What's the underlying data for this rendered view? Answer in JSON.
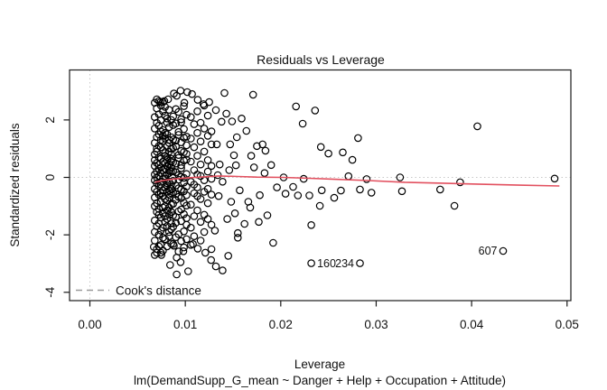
{
  "chart_data": {
    "type": "scatter",
    "title": "Residuals vs Leverage",
    "xlabel": "Leverage",
    "sub_xlabel": "lm(DemandSupp_G_mean ~ Danger + Help + Occupation + Attitude)",
    "ylabel": "Standardized residuals",
    "xlim": [
      -0.00213,
      0.0504
    ],
    "ylim": [
      -4.29,
      3.74
    ],
    "x_ticks": [
      0,
      0.01,
      0.02,
      0.03,
      0.04,
      0.05
    ],
    "x_tick_labels": [
      "0.00",
      "0.01",
      "0.02",
      "0.03",
      "0.04",
      "0.05"
    ],
    "y_ticks": [
      -4,
      -2,
      0,
      2
    ],
    "y_tick_labels": [
      "-4",
      "-2",
      "0",
      "2"
    ],
    "grid": "off",
    "reference_lines": {
      "h": 0,
      "v": 0,
      "style": "dotted",
      "color": "#c8c8c8"
    },
    "legend": {
      "label": "Cook's distance",
      "position": "bottom-left-inside",
      "color": "#9a9a9a",
      "line_style": "dashed"
    },
    "marker": {
      "shape": "open-circle",
      "radius": 3.7,
      "color": "#000000"
    },
    "smooth_line": {
      "color": "#e2505f",
      "points": [
        [
          0.0068,
          -0.17
        ],
        [
          0.0078,
          -0.1
        ],
        [
          0.009,
          -0.05
        ],
        [
          0.0105,
          -0.01
        ],
        [
          0.012,
          0.02
        ],
        [
          0.0135,
          0.05
        ],
        [
          0.0155,
          0.03
        ],
        [
          0.0175,
          0.01
        ],
        [
          0.0202,
          0.0
        ],
        [
          0.023,
          -0.03
        ],
        [
          0.026,
          -0.07
        ],
        [
          0.0292,
          -0.11
        ],
        [
          0.033,
          -0.17
        ],
        [
          0.037,
          -0.2
        ],
        [
          0.041,
          -0.24
        ],
        [
          0.045,
          -0.27
        ],
        [
          0.0492,
          -0.3
        ]
      ]
    },
    "labeled_points": [
      {
        "label": "160",
        "x": 0.0232,
        "y": -2.99,
        "side": "right"
      },
      {
        "label": "234",
        "x": 0.0283,
        "y": -2.99,
        "side": "left"
      },
      {
        "label": "607",
        "x": 0.0433,
        "y": -2.56,
        "side": "left"
      }
    ],
    "points": {
      "columns": [
        {
          "x": 0.0068,
          "ys": [
            -0.1,
            0.4,
            -0.7,
            1.2,
            -1.5,
            2.1,
            0.1,
            -2.2,
            0.8,
            -0.4,
            1.7,
            -1.0,
            2.6,
            -1.9,
            0.6,
            -2.7
          ]
        },
        {
          "x": 0.00701,
          "ys": [
            0.2,
            -0.5,
            1.0,
            -1.2,
            1.9,
            -0.2,
            2.4,
            -1.7,
            0.5,
            -2.5,
            1.4,
            0.0,
            -0.9,
            2.72,
            -2.62,
            0.9
          ]
        },
        {
          "x": 0.00723,
          "ys": [
            -0.3,
            0.7,
            -1.3,
            1.5,
            -2.0,
            0.3,
            2.2,
            -0.6,
            1.1,
            -1.6,
            2.66,
            -2.4,
            0.05,
            1.8,
            -1.1,
            0.45
          ]
        },
        {
          "x": 0.00744,
          "ys": [
            0.15,
            -0.85,
            1.3,
            -0.15,
            2.0,
            -1.4,
            0.65,
            -2.35,
            1.6,
            -0.55,
            2.5,
            -1.85,
            0.35,
            -2.62,
            1.05,
            -0.25
          ]
        },
        {
          "x": 0.00766,
          "ys": [
            -0.45,
            1.25,
            -1.05,
            0.55,
            -1.75,
            2.3,
            -0.05,
            0.95,
            -2.1,
            1.45,
            -0.65,
            2.62,
            -1.25,
            0.25,
            -2.55,
            1.65
          ]
        },
        {
          "x": 0.00787,
          "ys": [
            0.5,
            -1.35,
            0.85,
            -0.35,
            1.55,
            -2.15,
            0.05,
            2.15,
            -0.75,
            1.35,
            -1.55,
            0.75,
            -0.05,
            2.45,
            -1.0,
            0.3
          ]
        },
        {
          "x": 0.00809,
          "ys": [
            -0.2,
            0.6,
            -1.45,
            1.1,
            -0.5,
            1.9,
            -2.4,
            0.4,
            -1.15,
            2.05,
            -0.8,
            1.5,
            0.1,
            -1.7,
            0.7,
            -0.3
          ]
        },
        {
          "x": 0.0083,
          "ys": [
            0.25,
            -0.6,
            1.2,
            -1.9,
            0.45,
            -1.05,
            1.75,
            -0.15,
            0.9,
            -2.05,
            1.3,
            -0.45,
            2.35,
            -1.3,
            0.15,
            -0.7
          ]
        },
        {
          "x": 0.00852,
          "ys": [
            -0.95,
            0.35,
            -1.6,
            0.8,
            -0.25,
            1.4,
            -0.55,
            2.0,
            -1.2,
            0.55,
            -1.8,
            1.0,
            -0.4,
            0.2,
            -2.3,
            0.65
          ]
        },
        {
          "x": 0.00873,
          "ys": [
            -0.12,
            0.52,
            -0.92,
            1.32,
            -1.72,
            2.12,
            -2.32,
            0.22,
            -0.52,
            1.02,
            -1.32,
            1.82
          ]
        },
        {
          "x": 0.00901,
          "ys": [
            0.18,
            -0.58,
            1.08,
            -1.38,
            1.88,
            -0.28,
            2.38,
            -2.08,
            0.48,
            -0.78,
            1.28,
            -1.58
          ]
        },
        {
          "x": 0.00929,
          "ys": [
            -0.38,
            0.78,
            -1.18,
            1.58,
            -0.68,
            2.28,
            0.08,
            -1.98,
            0.68,
            -0.08,
            1.48,
            -2.58
          ]
        },
        {
          "x": 0.00957,
          "ys": [
            0.42,
            -0.72,
            1.22,
            -1.52,
            0.02,
            -2.22,
            1.92,
            -0.42,
            0.92,
            -1.12,
            2.02,
            0.32
          ]
        },
        {
          "x": 0.00985,
          "ys": [
            -0.48,
            0.88,
            -1.28,
            1.68,
            -0.18,
            2.48,
            -1.88,
            0.58,
            -0.88,
            1.38,
            -0.02,
            -2.44
          ]
        },
        {
          "x": 0.01013,
          "ys": [
            0.62,
            -0.98,
            1.42,
            -0.32,
            2.18,
            -1.42,
            0.12,
            -0.62,
            1.12,
            -2.15,
            0.82,
            -1.65
          ]
        },
        {
          "x": 0.01058,
          "ys": [
            -0.15,
            0.55,
            -0.95,
            1.35,
            -1.75,
            2.1,
            -2.35
          ]
        },
        {
          "x": 0.01092,
          "ys": [
            0.25,
            -0.55,
            1.05,
            -1.35,
            1.85,
            -0.25,
            -2.05
          ]
        },
        {
          "x": 0.01126,
          "ys": [
            -0.35,
            0.75,
            -1.15,
            1.55,
            -0.65,
            2.3,
            0.1
          ]
        },
        {
          "x": 0.0116,
          "ys": [
            0.45,
            -0.75,
            1.25,
            -1.55,
            0.05,
            -2.2,
            1.9
          ]
        },
        {
          "x": 0.01198,
          "ys": [
            -0.5,
            0.9,
            -1.3,
            1.7,
            -0.1,
            2.5,
            -1.9
          ]
        },
        {
          "x": 0.01236,
          "ys": [
            0.6,
            -0.9,
            1.45,
            -0.4,
            2.15,
            -1.45,
            0.2
          ]
        },
        {
          "x": 0.01274,
          "ys": [
            -0.6,
            1.15,
            -1.65,
            0.4,
            -2.5,
            1.6,
            -0.05
          ]
        }
      ],
      "singles": [
        [
          0.0325,
          0.0
        ],
        [
          0.0327,
          -0.48
        ],
        [
          0.0367,
          -0.42
        ],
        [
          0.0388,
          -0.17
        ],
        [
          0.0382,
          -0.99
        ],
        [
          0.0487,
          -0.04
        ],
        [
          0.0406,
          1.78
        ],
        [
          0.0184,
          0.93
        ],
        [
          0.019,
          0.43
        ],
        [
          0.0203,
          0.0
        ],
        [
          0.0196,
          -0.35
        ],
        [
          0.0205,
          -0.57
        ],
        [
          0.0213,
          -0.33
        ],
        [
          0.0218,
          -0.63
        ],
        [
          0.0216,
          2.47
        ],
        [
          0.0223,
          1.87
        ],
        [
          0.0236,
          2.33
        ],
        [
          0.0242,
          1.06
        ],
        [
          0.025,
          0.83
        ],
        [
          0.0265,
          0.87
        ],
        [
          0.0275,
          0.61
        ],
        [
          0.0281,
          1.37
        ],
        [
          0.0224,
          -0.05
        ],
        [
          0.023,
          -0.63
        ],
        [
          0.0241,
          -0.99
        ],
        [
          0.0232,
          -1.66
        ],
        [
          0.0243,
          -0.45
        ],
        [
          0.0256,
          -0.71
        ],
        [
          0.0263,
          -0.46
        ],
        [
          0.0271,
          0.04
        ],
        [
          0.0283,
          -0.42
        ],
        [
          0.029,
          -0.06
        ],
        [
          0.0295,
          -0.53
        ],
        [
          0.0192,
          -2.28
        ],
        [
          0.0164,
          1.62
        ],
        [
          0.0168,
          -1.05
        ],
        [
          0.0172,
          0.35
        ],
        [
          0.0178,
          -0.62
        ],
        [
          0.0181,
          1.15
        ],
        [
          0.0186,
          -1.32
        ],
        [
          0.0169,
          0.75
        ],
        [
          0.0162,
          -1.62
        ],
        [
          0.0155,
          -1.94
        ],
        [
          0.0171,
          2.88
        ],
        [
          0.0175,
          1.09
        ],
        [
          0.0177,
          -1.55
        ],
        [
          0.0183,
          0.15
        ],
        [
          0.0166,
          -0.85
        ],
        [
          0.0159,
          2.05
        ],
        [
          0.0141,
          2.94
        ],
        [
          0.0143,
          2.22
        ],
        [
          0.0138,
          1.94
        ],
        [
          0.0132,
          2.34
        ],
        [
          0.0151,
          0.77
        ],
        [
          0.0154,
          1.4
        ],
        [
          0.0157,
          -0.45
        ],
        [
          0.0148,
          -0.85
        ],
        [
          0.0152,
          -1.25
        ],
        [
          0.0146,
          0.25
        ],
        [
          0.0135,
          -0.65
        ],
        [
          0.0133,
          1.15
        ],
        [
          0.0136,
          0.45
        ],
        [
          0.0149,
          1.95
        ],
        [
          0.0131,
          -1.85
        ],
        [
          0.0144,
          -1.45
        ],
        [
          0.0147,
          1.15
        ],
        [
          0.0139,
          -0.15
        ],
        [
          0.0134,
          0.08
        ],
        [
          0.0153,
          0.42
        ],
        [
          0.0091,
          -3.38
        ],
        [
          0.0103,
          -3.27
        ],
        [
          0.0084,
          -3.05
        ],
        [
          0.0095,
          -2.95
        ],
        [
          0.0098,
          -2.57
        ],
        [
          0.0088,
          -2.38
        ],
        [
          0.0067,
          -2.42
        ],
        [
          0.0075,
          -2.7
        ],
        [
          0.0091,
          -2.79
        ],
        [
          0.0108,
          -2.32
        ],
        [
          0.0113,
          -2.48
        ],
        [
          0.0145,
          -2.73
        ],
        [
          0.0139,
          -3.24
        ],
        [
          0.0121,
          -2.62
        ],
        [
          0.0127,
          -2.88
        ],
        [
          0.0132,
          -3.1
        ],
        [
          0.0155,
          -2.1
        ],
        [
          0.0095,
          3.02
        ],
        [
          0.0102,
          2.97
        ],
        [
          0.0107,
          2.9
        ],
        [
          0.0088,
          2.92
        ],
        [
          0.0082,
          2.72
        ],
        [
          0.0078,
          2.66
        ],
        [
          0.0074,
          2.62
        ],
        [
          0.0091,
          2.84
        ],
        [
          0.0099,
          2.6
        ],
        [
          0.0113,
          2.7
        ],
        [
          0.0119,
          2.55
        ],
        [
          0.0125,
          2.62
        ]
      ]
    }
  }
}
